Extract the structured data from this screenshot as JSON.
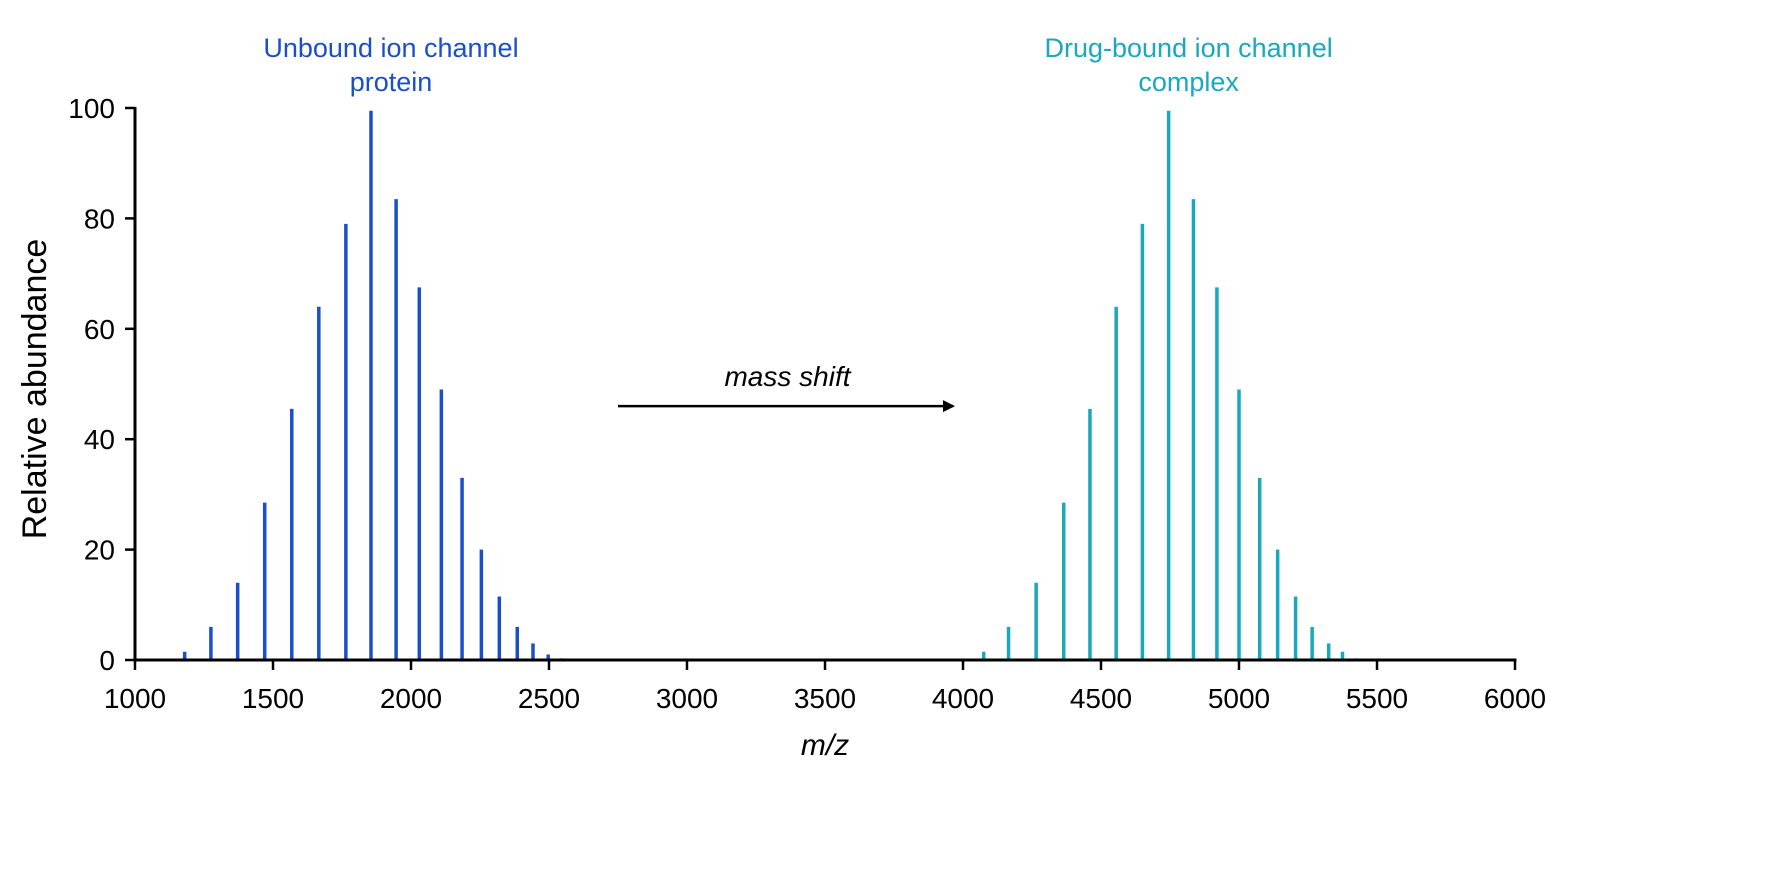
{
  "chart_data": {
    "type": "bar",
    "xlabel": "m/z",
    "ylabel": "Relative abundance",
    "xlim": [
      1000,
      6000
    ],
    "ylim": [
      0,
      100
    ],
    "xticks": [
      1000,
      1500,
      2000,
      2500,
      3000,
      3500,
      4000,
      4500,
      5000,
      5500,
      6000
    ],
    "yticks": [
      0,
      20,
      40,
      60,
      80,
      100
    ],
    "grid": false,
    "series": [
      {
        "name": "Unbound ion channel protein",
        "label_lines": [
          "Unbound ion channel",
          "protein"
        ],
        "color": "#1a4fc9",
        "x": [
          1180,
          1275,
          1372,
          1470,
          1568,
          1666,
          1764,
          1855,
          1946,
          2030,
          2110,
          2185,
          2255,
          2320,
          2385,
          2442,
          2497,
          2545
        ],
        "y": [
          1.5,
          6,
          14,
          28.5,
          45.5,
          64,
          79,
          99.5,
          83.5,
          67.5,
          49,
          33,
          20,
          11.5,
          6,
          3,
          1,
          0.3
        ]
      },
      {
        "name": "Drug-bound ion channel complex",
        "label_lines": [
          "Drug-bound ion channel",
          "complex"
        ],
        "color": "#1aa8bd",
        "x": [
          4075,
          4165,
          4265,
          4365,
          4460,
          4555,
          4650,
          4745,
          4835,
          4920,
          5000,
          5075,
          5140,
          5205,
          5265,
          5325,
          5375,
          5425
        ],
        "y": [
          1.5,
          6,
          14,
          28.5,
          45.5,
          64,
          79,
          99.5,
          83.5,
          67.5,
          49,
          33,
          20,
          11.5,
          6,
          3,
          1.5,
          0.3
        ]
      }
    ],
    "annotations": [
      {
        "text": "mass shift",
        "from_x": 2750,
        "to_x": 4000,
        "y": 46,
        "color": "#000000"
      }
    ]
  }
}
